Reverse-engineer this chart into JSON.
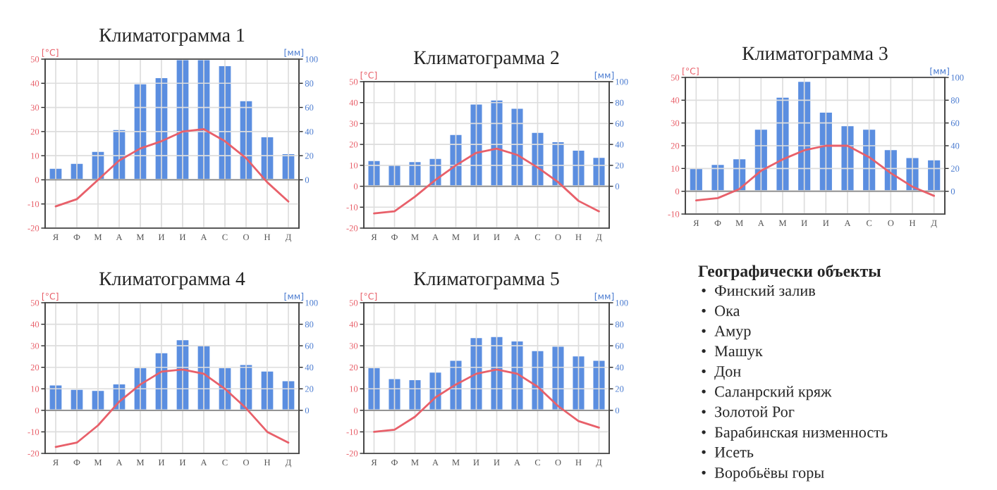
{
  "chart_data": [
    {
      "type": "bar",
      "title": "Климатограмма 1",
      "ylabel": "[°C]",
      "y2label": "[мм]",
      "categories": [
        "Я",
        "Ф",
        "М",
        "А",
        "М",
        "И",
        "И",
        "А",
        "С",
        "О",
        "Н",
        "Д"
      ],
      "ylim": [
        -20,
        50
      ],
      "yticks": [
        -20,
        -10,
        0,
        10,
        20,
        30,
        40,
        50
      ],
      "y2lim": [
        -40,
        100
      ],
      "y2ticks": [
        0,
        20,
        40,
        60,
        80,
        100
      ],
      "grid": true,
      "series": [
        {
          "type": "bar",
          "axis": "y2",
          "color": "#5b8ee0",
          "values": [
            10,
            14,
            24,
            42,
            80,
            85,
            100,
            100,
            95,
            66,
            36,
            22
          ]
        },
        {
          "type": "line",
          "axis": "y",
          "color": "#e8606a",
          "values": [
            -11,
            -8,
            0,
            8,
            13,
            16,
            20,
            21,
            16,
            9,
            -1,
            -9
          ]
        }
      ]
    },
    {
      "type": "bar",
      "title": "Климатограмма 2",
      "ylabel": "[°C]",
      "y2label": "[мм]",
      "categories": [
        "Я",
        "Ф",
        "М",
        "А",
        "М",
        "И",
        "И",
        "А",
        "С",
        "О",
        "Н",
        "Д"
      ],
      "ylim": [
        -20,
        50
      ],
      "yticks": [
        -20,
        -10,
        0,
        10,
        20,
        30,
        40,
        50
      ],
      "y2lim": [
        -40,
        100
      ],
      "y2ticks": [
        0,
        20,
        40,
        60,
        80,
        100
      ],
      "grid": true,
      "series": [
        {
          "type": "bar",
          "axis": "y2",
          "color": "#5b8ee0",
          "values": [
            25,
            21,
            24,
            27,
            50,
            79,
            83,
            75,
            52,
            43,
            35,
            28
          ]
        },
        {
          "type": "line",
          "axis": "y",
          "color": "#e8606a",
          "values": [
            -13,
            -12,
            -5,
            3,
            10,
            16,
            18,
            15,
            9,
            2,
            -7,
            -12
          ]
        }
      ]
    },
    {
      "type": "bar",
      "title": "Климатограмма 3",
      "ylabel": "[°C]",
      "y2label": "[мм]",
      "categories": [
        "Я",
        "Ф",
        "М",
        "А",
        "М",
        "И",
        "И",
        "А",
        "С",
        "О",
        "Н",
        "Д"
      ],
      "ylim": [
        -10,
        50
      ],
      "yticks": [
        -10,
        0,
        10,
        20,
        30,
        40,
        50
      ],
      "y2lim": [
        -20,
        100
      ],
      "y2ticks": [
        0,
        20,
        40,
        60,
        80,
        100
      ],
      "grid": true,
      "series": [
        {
          "type": "bar",
          "axis": "y2",
          "color": "#5b8ee0",
          "values": [
            21,
            24,
            29,
            55,
            83,
            97,
            70,
            58,
            55,
            37,
            30,
            28
          ]
        },
        {
          "type": "line",
          "axis": "y",
          "color": "#e8606a",
          "values": [
            -4,
            -3,
            1,
            9,
            14,
            18,
            20,
            20,
            15,
            8,
            2,
            -2
          ]
        }
      ]
    },
    {
      "type": "bar",
      "title": "Климатограмма 4",
      "ylabel": "[°C]",
      "y2label": "[мм]",
      "categories": [
        "Я",
        "Ф",
        "М",
        "А",
        "М",
        "И",
        "И",
        "А",
        "С",
        "О",
        "Н",
        "Д"
      ],
      "ylim": [
        -20,
        50
      ],
      "yticks": [
        -20,
        -10,
        0,
        10,
        20,
        30,
        40,
        50
      ],
      "y2lim": [
        -40,
        100
      ],
      "y2ticks": [
        0,
        20,
        40,
        60,
        80,
        100
      ],
      "grid": true,
      "series": [
        {
          "type": "bar",
          "axis": "y2",
          "color": "#5b8ee0",
          "values": [
            24,
            20,
            19,
            25,
            40,
            54,
            66,
            61,
            40,
            43,
            37,
            28
          ]
        },
        {
          "type": "line",
          "axis": "y",
          "color": "#e8606a",
          "values": [
            -17,
            -15,
            -7,
            4,
            12,
            18,
            19,
            17,
            10,
            1,
            -10,
            -15
          ]
        }
      ]
    },
    {
      "type": "bar",
      "title": "Климатограмма 5",
      "ylabel": "[°C]",
      "y2label": "[мм]",
      "categories": [
        "Я",
        "Ф",
        "М",
        "А",
        "М",
        "И",
        "И",
        "А",
        "С",
        "О",
        "Н",
        "Д"
      ],
      "ylim": [
        -20,
        50
      ],
      "yticks": [
        -20,
        -10,
        0,
        10,
        20,
        30,
        40,
        50
      ],
      "y2lim": [
        -40,
        100
      ],
      "y2ticks": [
        0,
        20,
        40,
        60,
        80,
        100
      ],
      "grid": true,
      "series": [
        {
          "type": "bar",
          "axis": "y2",
          "color": "#5b8ee0",
          "values": [
            40,
            30,
            29,
            36,
            47,
            68,
            69,
            65,
            56,
            60,
            51,
            47
          ]
        },
        {
          "type": "line",
          "axis": "y",
          "color": "#e8606a",
          "values": [
            -10,
            -9,
            -3,
            6,
            12,
            17,
            19,
            17,
            11,
            2,
            -5,
            -8
          ]
        }
      ]
    },
    {
      "type": "other",
      "title": "Географически объекты",
      "annotations": [
        "•  Финский залив",
        "•  Ока",
        "•  Амур",
        "•  Машук",
        "•  Дон",
        "•  Саланрский кряж",
        "•  Золотой Рог",
        "•  Барабинская низменность",
        "•  Исеть",
        "•  Воробьёвы горы"
      ]
    }
  ]
}
